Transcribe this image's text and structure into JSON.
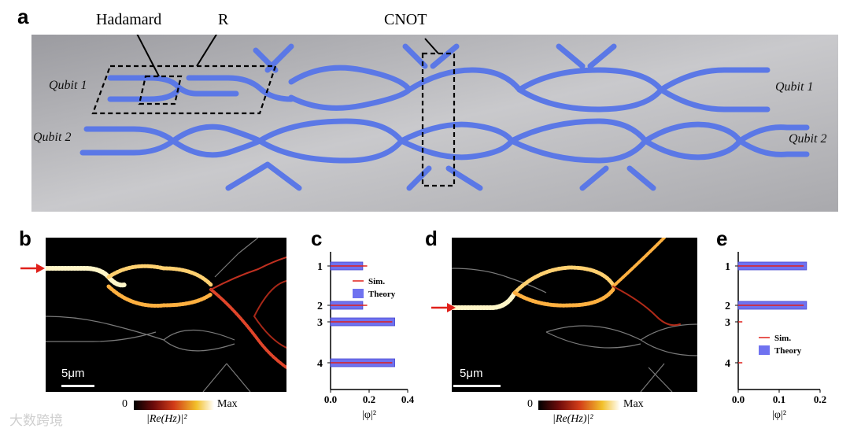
{
  "panels": {
    "a": "a",
    "b": "b",
    "c": "c",
    "d": "d",
    "e": "e"
  },
  "schematic": {
    "label_hadamard": "Hadamard",
    "label_r": "R",
    "label_cnot": "CNOT",
    "qubit1_left": "Qubit 1",
    "qubit2_left": "Qubit 2",
    "qubit1_right": "Qubit 1",
    "qubit2_right": "Qubit 2",
    "colors": {
      "waveguide": "#5b78e6",
      "background": "#b9b9bd"
    }
  },
  "field_maps": {
    "scale_bar": "5μm",
    "colorbar_min": "0",
    "colorbar_max": "Max",
    "colorbar_label": "|Re(Hz)|²",
    "colors": {
      "background": "#000000",
      "field": "#e0452a",
      "outline": "#8a8a8a"
    }
  },
  "chart_data": [
    {
      "type": "bar",
      "panel": "c",
      "categories": [
        "1",
        "2",
        "3",
        "4"
      ],
      "series": [
        {
          "name": "Sim.",
          "values": [
            0.19,
            0.19,
            0.32,
            0.32
          ]
        },
        {
          "name": "Theory",
          "values": [
            0.167,
            0.167,
            0.333,
            0.333
          ]
        }
      ],
      "xlabel": "|φ|²",
      "xticks": [
        "0.0",
        "0.2",
        "0.4"
      ],
      "xlim": [
        0,
        0.4
      ],
      "legend_position": "center-right"
    },
    {
      "type": "bar",
      "panel": "e",
      "categories": [
        "1",
        "2",
        "3",
        "4"
      ],
      "series": [
        {
          "name": "Sim.",
          "values": [
            0.16,
            0.16,
            0.01,
            0.01
          ]
        },
        {
          "name": "Theory",
          "values": [
            0.167,
            0.167,
            0.0,
            0.0
          ]
        }
      ],
      "xlabel": "|φ|²",
      "xticks": [
        "0.0",
        "0.1",
        "0.2"
      ],
      "xlim": [
        0,
        0.2
      ],
      "legend_position": "lower-middle"
    }
  ],
  "watermark": "大数跨境"
}
